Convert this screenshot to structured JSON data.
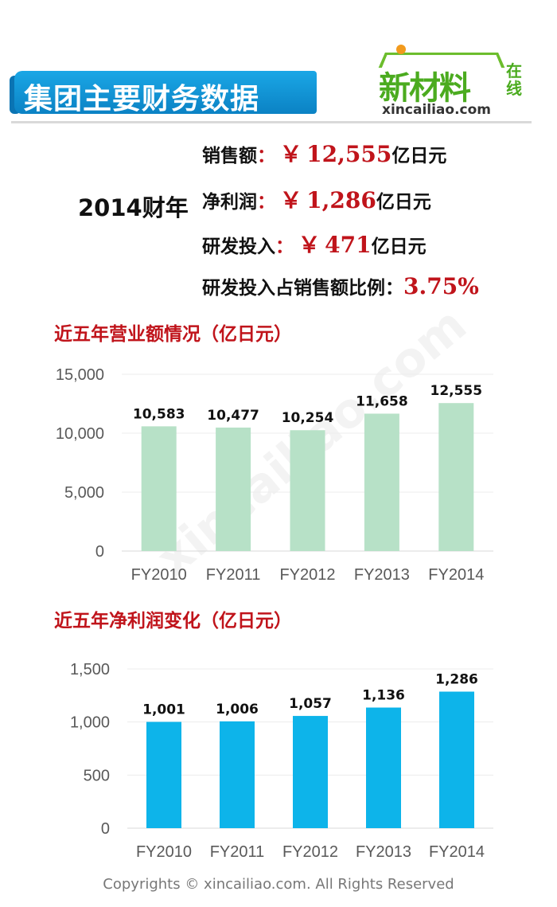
{
  "header": {
    "title": "集团主要财务数据"
  },
  "logo": {
    "name": "新材料",
    "online": "在线",
    "url": "xincailiao.com"
  },
  "summary": {
    "fiscal_year": "2014财年",
    "sales": {
      "label": "销售额",
      "colon": "：",
      "currency": "￥",
      "value": "12,555",
      "unit": "亿日元"
    },
    "net_profit": {
      "label": "净利润",
      "colon": "：",
      "currency": "￥",
      "value": "1,286",
      "unit": "亿日元"
    },
    "rnd": {
      "label": "研发投入",
      "colon": "：",
      "currency": "￥",
      "value": "471",
      "unit": "亿日元"
    },
    "rnd_ratio": {
      "label": "研发投入占销售额比例",
      "colon": "：",
      "value": "3.75%"
    }
  },
  "chart_data": [
    {
      "type": "bar",
      "title": "近五年营业额情况（亿日元）",
      "categories": [
        "FY2010",
        "FY2011",
        "FY2012",
        "FY2013",
        "FY2014"
      ],
      "values": [
        10583,
        10477,
        10254,
        11658,
        12555
      ],
      "value_labels": [
        "10,583",
        "10,477",
        "10,254",
        "11,658",
        "12,555"
      ],
      "ylim": [
        0,
        15000
      ],
      "yticks": [
        0,
        5000,
        10000,
        15000
      ],
      "ytick_labels": [
        "0",
        "5,000",
        "10,000",
        "15,000"
      ],
      "grid": true,
      "color": "#b7e1c7"
    },
    {
      "type": "bar",
      "title": "近五年净利润变化（亿日元）",
      "categories": [
        "FY2010",
        "FY2011",
        "FY2012",
        "FY2013",
        "FY2014"
      ],
      "values": [
        1001,
        1006,
        1057,
        1136,
        1286
      ],
      "value_labels": [
        "1,001",
        "1,006",
        "1,057",
        "1,136",
        "1,286"
      ],
      "ylim": [
        0,
        1500
      ],
      "yticks": [
        0,
        500,
        1000,
        1500
      ],
      "ytick_labels": [
        "0",
        "500",
        "1,000",
        "1,500"
      ],
      "grid": true,
      "color": "#0db4ea"
    }
  ],
  "footer": {
    "copyright": "Copyrights © xincailiao.com. All Rights Reserved"
  }
}
